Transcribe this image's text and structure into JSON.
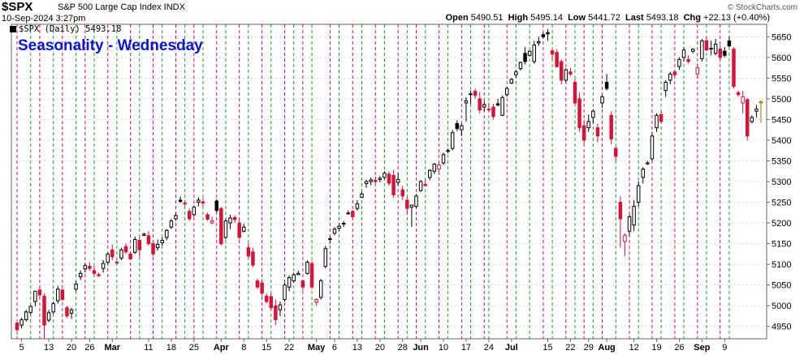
{
  "header": {
    "symbol": "$SPX",
    "description": "S&P 500 Large Cap Index  INDX",
    "date": "10-Sep-2024 3:27pm",
    "open_label": "Open",
    "open": "5490.51",
    "high_label": "High",
    "high": "5495.14",
    "low_label": "Low",
    "low": "5441.72",
    "last_label": "Last",
    "last": "5493.18",
    "chg_label": "Chg",
    "chg": "+22.13 (+0.40%)",
    "copyright": "© StockCharts.com"
  },
  "legend": {
    "text": "$SPX (Daily) 5493.18"
  },
  "chart_data": {
    "type": "candlestick",
    "title": "Seasonality - Wednesday",
    "ylim": [
      4920,
      5680
    ],
    "y_ticks": [
      4950,
      5000,
      5050,
      5100,
      5150,
      5200,
      5250,
      5300,
      5350,
      5400,
      5450,
      5500,
      5550,
      5600,
      5650
    ],
    "x_tick_labels": [
      "5",
      "13",
      "20",
      "26",
      "Mar",
      "11",
      "18",
      "25",
      "Apr",
      "8",
      "15",
      "22",
      "May",
      "6",
      "13",
      "20",
      "28",
      "Jun",
      "10",
      "17",
      "24",
      "Jul",
      "15",
      "22",
      "29",
      "Aug",
      "12",
      "19",
      "26",
      "Sep",
      "9"
    ],
    "x_tick_index": [
      1,
      7,
      12,
      16,
      21,
      29,
      34,
      39,
      45,
      50,
      55,
      60,
      66,
      70,
      75,
      80,
      85,
      89,
      94,
      99,
      104,
      109,
      117,
      122,
      126,
      130,
      136,
      141,
      146,
      151,
      156
    ],
    "month_labels": [
      "Mar",
      "Apr",
      "May",
      "Jun",
      "Jul",
      "Aug",
      "Sep"
    ],
    "vertical_lines": {
      "green_index": [
        3,
        8,
        13,
        17,
        22,
        27,
        32,
        37,
        41,
        46,
        51,
        56,
        61,
        65,
        71,
        76,
        81,
        86,
        90,
        95,
        100,
        104,
        110,
        113,
        118,
        123,
        127,
        132,
        137,
        142,
        147,
        152,
        157
      ],
      "red_index": [
        0,
        5,
        10,
        15,
        20,
        25,
        30,
        35,
        39,
        44,
        49,
        54,
        59,
        63,
        69,
        74,
        79,
        84,
        88,
        93,
        98,
        103,
        108,
        116,
        121,
        125,
        129,
        135,
        140,
        145,
        150,
        155
      ]
    },
    "colors": {
      "up": "#ffffff",
      "down": "#d6143a",
      "up_filled": "#000000",
      "last": "#f2e24b",
      "green_line": "#1aa01a",
      "red_line": "#d6143a",
      "title": "#0b15d6"
    },
    "candles": [
      [
        4958,
        4963,
        4930,
        4942
      ],
      [
        4953,
        4971,
        4945,
        4966
      ],
      [
        4966,
        4990,
        4962,
        4985
      ],
      [
        4984,
        5002,
        4978,
        4998
      ],
      [
        5010,
        5030,
        4998,
        5035
      ],
      [
        5038,
        5045,
        5020,
        5026
      ],
      [
        5023,
        5030,
        4920,
        4953
      ],
      [
        4965,
        4990,
        4960,
        4983
      ],
      [
        4985,
        5010,
        4980,
        5005
      ],
      [
        5012,
        5048,
        5005,
        5040
      ],
      [
        5038,
        5040,
        5011,
        5015
      ],
      [
        4995,
        5000,
        4970,
        4975
      ],
      [
        4982,
        4995,
        4968,
        4990
      ],
      [
        5040,
        5060,
        5035,
        5052
      ],
      [
        5070,
        5085,
        5062,
        5078
      ],
      [
        5089,
        5102,
        5080,
        5097
      ],
      [
        5095,
        5105,
        5085,
        5090
      ],
      [
        5085,
        5096,
        5072,
        5078
      ],
      [
        5075,
        5080,
        5070,
        5072
      ],
      [
        5090,
        5110,
        5080,
        5102
      ],
      [
        5105,
        5128,
        5100,
        5125
      ],
      [
        5135,
        5148,
        5110,
        5118
      ],
      [
        5105,
        5111,
        5100,
        5105
      ],
      [
        5115,
        5140,
        5110,
        5135
      ],
      [
        5143,
        5150,
        5125,
        5130
      ],
      [
        5125,
        5131,
        5111,
        5113
      ],
      [
        5129,
        5167,
        5125,
        5160
      ],
      [
        5158,
        5165,
        5117,
        5135
      ],
      [
        5170,
        5176,
        5168,
        5173
      ],
      [
        5169,
        5180,
        5145,
        5150
      ],
      [
        5150,
        5155,
        5120,
        5125
      ],
      [
        5140,
        5160,
        5133,
        5148
      ],
      [
        5152,
        5165,
        5145,
        5158
      ],
      [
        5165,
        5185,
        5158,
        5182
      ],
      [
        5190,
        5210,
        5185,
        5205
      ],
      [
        5210,
        5225,
        5205,
        5218
      ],
      [
        5255,
        5264,
        5248,
        5252
      ],
      [
        5248,
        5255,
        5240,
        5246
      ],
      [
        5228,
        5235,
        5205,
        5210
      ],
      [
        5220,
        5242,
        5215,
        5238
      ],
      [
        5250,
        5262,
        5240,
        5255
      ],
      [
        5251,
        5260,
        5240,
        5248
      ],
      [
        5220,
        5225,
        5205,
        5209
      ],
      [
        5200,
        5215,
        5196,
        5205
      ],
      [
        5253,
        5257,
        5225,
        5230
      ],
      [
        5235,
        5239,
        5145,
        5150
      ],
      [
        5165,
        5210,
        5160,
        5205
      ],
      [
        5200,
        5220,
        5185,
        5212
      ],
      [
        5213,
        5218,
        5200,
        5208
      ],
      [
        5200,
        5207,
        5160,
        5165
      ],
      [
        5180,
        5198,
        5177,
        5190
      ],
      [
        5140,
        5151,
        5115,
        5120
      ],
      [
        5130,
        5140,
        5093,
        5098
      ],
      [
        5060,
        5066,
        5040,
        5045
      ],
      [
        5055,
        5064,
        5023,
        5030
      ],
      [
        5023,
        5030,
        5005,
        5010
      ],
      [
        5022,
        5030,
        4990,
        4995
      ],
      [
        5000,
        5015,
        4953,
        4966
      ],
      [
        4990,
        5010,
        4975,
        5002
      ],
      [
        5015,
        5055,
        5010,
        5050
      ],
      [
        5045,
        5073,
        5035,
        5068
      ],
      [
        5060,
        5080,
        5055,
        5075
      ],
      [
        5075,
        5085,
        5075,
        5078
      ],
      [
        5060,
        5063,
        5037,
        5045
      ],
      [
        5078,
        5110,
        5075,
        5105
      ],
      [
        5102,
        5108,
        5040,
        5045
      ],
      [
        5008,
        5018,
        5000,
        5015
      ],
      [
        5020,
        5065,
        5015,
        5060
      ],
      [
        5095,
        5145,
        5090,
        5138
      ],
      [
        5160,
        5167,
        5150,
        5162
      ],
      [
        5175,
        5190,
        5170,
        5185
      ],
      [
        5187,
        5200,
        5180,
        5192
      ],
      [
        5197,
        5205,
        5190,
        5199
      ],
      [
        5222,
        5230,
        5220,
        5224
      ],
      [
        5228,
        5231,
        5210,
        5215
      ],
      [
        5235,
        5255,
        5230,
        5246
      ],
      [
        5262,
        5275,
        5260,
        5270
      ],
      [
        5295,
        5305,
        5285,
        5300
      ],
      [
        5300,
        5310,
        5291,
        5304
      ],
      [
        5303,
        5312,
        5295,
        5300
      ],
      [
        5305,
        5313,
        5298,
        5308
      ],
      [
        5310,
        5325,
        5305,
        5320
      ],
      [
        5318,
        5325,
        5290,
        5296
      ],
      [
        5315,
        5328,
        5261,
        5268
      ],
      [
        5298,
        5320,
        5290,
        5305
      ],
      [
        5280,
        5290,
        5255,
        5265
      ],
      [
        5255,
        5264,
        5220,
        5235
      ],
      [
        5238,
        5242,
        5190,
        5243
      ],
      [
        5240,
        5270,
        5235,
        5265
      ],
      [
        5278,
        5304,
        5275,
        5300
      ],
      [
        5293,
        5305,
        5288,
        5290
      ],
      [
        5310,
        5330,
        5303,
        5327
      ],
      [
        5325,
        5345,
        5318,
        5342
      ],
      [
        5330,
        5345,
        5320,
        5340
      ],
      [
        5345,
        5370,
        5340,
        5365
      ],
      [
        5373,
        5380,
        5368,
        5375
      ],
      [
        5380,
        5425,
        5375,
        5418
      ],
      [
        5440,
        5448,
        5422,
        5428
      ],
      [
        5425,
        5440,
        5410,
        5435
      ],
      [
        5490,
        5504,
        5445,
        5495
      ],
      [
        5510,
        5520,
        5488,
        5512
      ],
      [
        5518,
        5525,
        5500,
        5508
      ],
      [
        5500,
        5516,
        5465,
        5473
      ],
      [
        5480,
        5495,
        5470,
        5486
      ],
      [
        5474,
        5490,
        5468,
        5475
      ],
      [
        5480,
        5488,
        5450,
        5457
      ],
      [
        5488,
        5500,
        5482,
        5485
      ],
      [
        5460,
        5508,
        5458,
        5503
      ],
      [
        5510,
        5530,
        5505,
        5525
      ],
      [
        5538,
        5550,
        5535,
        5547
      ],
      [
        5558,
        5570,
        5550,
        5565
      ],
      [
        5573,
        5590,
        5568,
        5588
      ],
      [
        5610,
        5625,
        5583,
        5590
      ],
      [
        5605,
        5617,
        5602,
        5615
      ],
      [
        5590,
        5640,
        5585,
        5630
      ],
      [
        5635,
        5650,
        5628,
        5638
      ],
      [
        5655,
        5660,
        5645,
        5650
      ],
      [
        5660,
        5668,
        5640,
        5657
      ],
      [
        5616,
        5620,
        5595,
        5608
      ],
      [
        5612,
        5620,
        5575,
        5578
      ],
      [
        5590,
        5595,
        5535,
        5545
      ],
      [
        5545,
        5574,
        5540,
        5570
      ],
      [
        5565,
        5575,
        5555,
        5560
      ],
      [
        5540,
        5548,
        5485,
        5490
      ],
      [
        5500,
        5515,
        5420,
        5430
      ],
      [
        5435,
        5448,
        5390,
        5400
      ],
      [
        5430,
        5462,
        5420,
        5445
      ],
      [
        5455,
        5475,
        5440,
        5470
      ],
      [
        5430,
        5440,
        5395,
        5410
      ],
      [
        5490,
        5510,
        5478,
        5505
      ],
      [
        5540,
        5560,
        5520,
        5525
      ],
      [
        5460,
        5470,
        5390,
        5403
      ],
      [
        5380,
        5385,
        5350,
        5361
      ],
      [
        5250,
        5265,
        5140,
        5210
      ],
      [
        5155,
        5175,
        5120,
        5170
      ],
      [
        5180,
        5220,
        5168,
        5215
      ],
      [
        5195,
        5255,
        5180,
        5240
      ],
      [
        5250,
        5300,
        5240,
        5290
      ],
      [
        5310,
        5335,
        5295,
        5330
      ],
      [
        5345,
        5350,
        5340,
        5345
      ],
      [
        5355,
        5420,
        5350,
        5410
      ],
      [
        5430,
        5465,
        5420,
        5460
      ],
      [
        5462,
        5470,
        5440,
        5445
      ],
      [
        5520,
        5545,
        5505,
        5540
      ],
      [
        5545,
        5565,
        5535,
        5560
      ],
      [
        5565,
        5570,
        5555,
        5558
      ],
      [
        5578,
        5600,
        5570,
        5595
      ],
      [
        5600,
        5625,
        5590,
        5618
      ],
      [
        5595,
        5605,
        5585,
        5590
      ],
      [
        5615,
        5622,
        5610,
        5620
      ],
      [
        5560,
        5585,
        5550,
        5575
      ],
      [
        5597,
        5645,
        5590,
        5640
      ],
      [
        5640,
        5650,
        5615,
        5618
      ],
      [
        5620,
        5640,
        5605,
        5622
      ],
      [
        5610,
        5645,
        5605,
        5632
      ],
      [
        5620,
        5630,
        5595,
        5600
      ],
      [
        5615,
        5625,
        5600,
        5605
      ],
      [
        5640,
        5650,
        5625,
        5628
      ],
      [
        5620,
        5625,
        5525,
        5530
      ],
      [
        5515,
        5520,
        5505,
        5510
      ],
      [
        5490,
        5520,
        5465,
        5505
      ],
      [
        5498,
        5502,
        5400,
        5410
      ],
      [
        5445,
        5460,
        5440,
        5455
      ],
      [
        5470,
        5485,
        5455,
        5475
      ],
      [
        5490,
        5496,
        5442,
        5493
      ]
    ]
  }
}
